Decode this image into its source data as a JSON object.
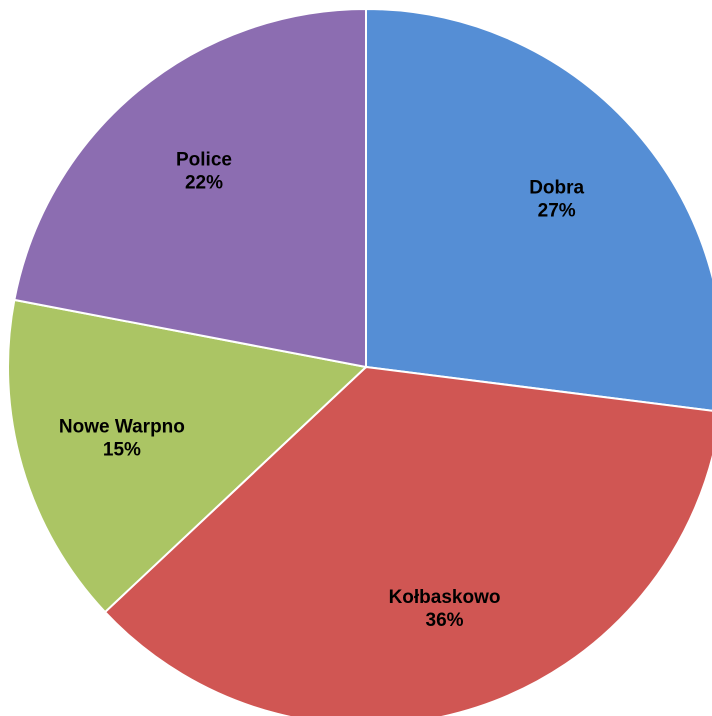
{
  "chart_data": {
    "type": "pie",
    "title": "",
    "categories": [
      "Dobra",
      "Kołbaskowo",
      "Nowe Warpno",
      "Police"
    ],
    "values": [
      27,
      36,
      15,
      22
    ],
    "value_labels": [
      "27%",
      "36%",
      "15%",
      "22%"
    ],
    "colors": [
      "#558ed5",
      "#d05653",
      "#abc564",
      "#8c6db1"
    ],
    "start_angle_deg": 0,
    "direction": "clockwise",
    "legend": "none",
    "data_labels": "inside"
  }
}
